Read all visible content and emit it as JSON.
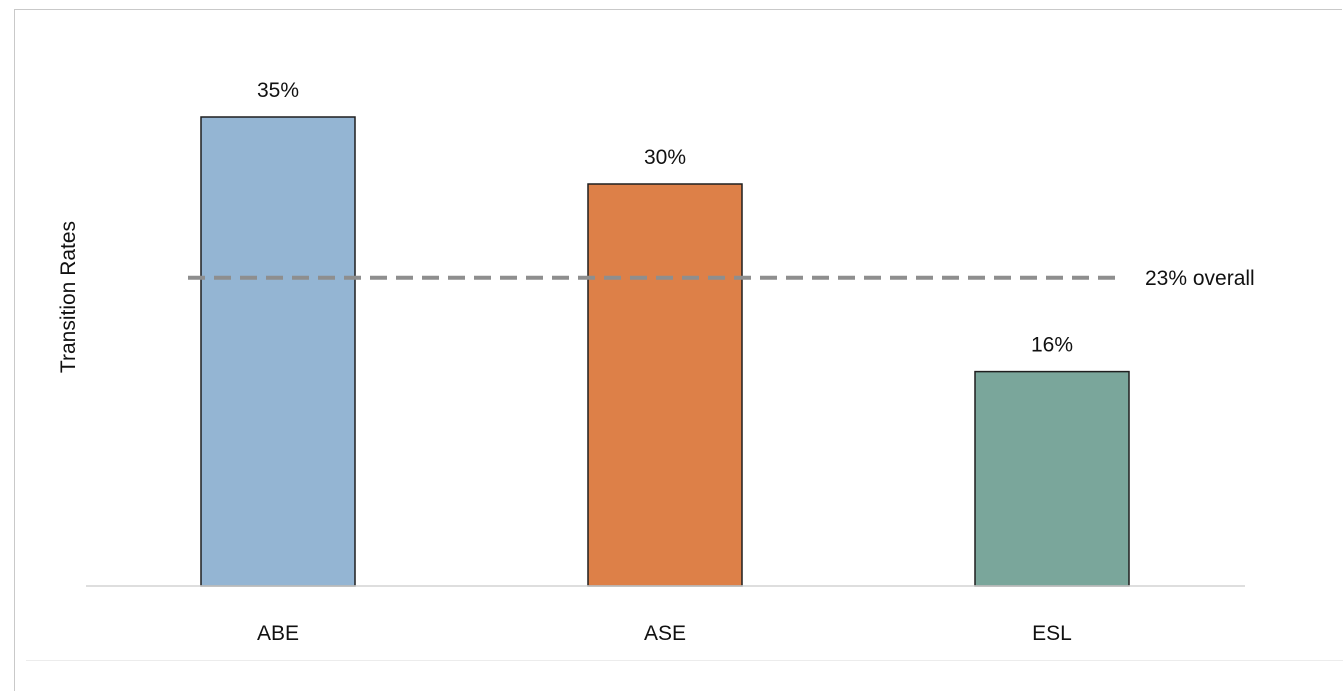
{
  "chart_data": {
    "type": "bar",
    "title": "",
    "xlabel": "",
    "ylabel": "Transition Rates",
    "categories": [
      "ABE",
      "ASE",
      "ESL"
    ],
    "values": [
      35,
      30,
      16
    ],
    "data_labels": [
      "35%",
      "30%",
      "16%"
    ],
    "colors": [
      "#94b5d3",
      "#dd8048",
      "#7aa69b"
    ],
    "ylim": [
      0,
      40
    ],
    "grid": false,
    "legend": "none",
    "reference_line": {
      "value": 23,
      "label": "23% overall",
      "color": "#8e8e8e",
      "style": "dashed"
    }
  }
}
